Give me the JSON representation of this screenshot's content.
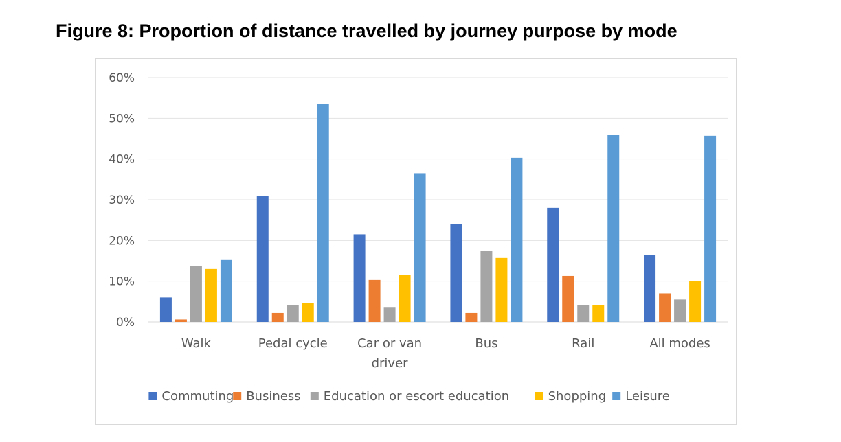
{
  "figure_title": "Figure 8: Proportion of distance travelled by journey purpose by mode",
  "chart_data": {
    "type": "bar",
    "title": "",
    "xlabel": "",
    "ylabel": "",
    "ylim": [
      0,
      60
    ],
    "y_ticks": [
      "0%",
      "10%",
      "20%",
      "30%",
      "40%",
      "50%",
      "60%"
    ],
    "grid": "horizontal",
    "legend_position": "bottom",
    "categories": [
      [
        "Walk"
      ],
      [
        "Pedal cycle"
      ],
      [
        "Car or van",
        "driver"
      ],
      [
        "Bus"
      ],
      [
        "Rail"
      ],
      [
        "All modes"
      ]
    ],
    "series": [
      {
        "name": "Commuting",
        "color": "#4472c4",
        "values": [
          6,
          31,
          21.5,
          24,
          28,
          16.5
        ]
      },
      {
        "name": "Business",
        "color": "#ed7d31",
        "values": [
          0.6,
          2.2,
          10.3,
          2.2,
          11.3,
          7
        ]
      },
      {
        "name": "Education or escort education",
        "color": "#a5a5a5",
        "values": [
          13.8,
          4.1,
          3.5,
          17.5,
          4.1,
          5.5
        ]
      },
      {
        "name": "Shopping",
        "color": "#ffc000",
        "values": [
          13,
          4.7,
          11.6,
          15.7,
          4.1,
          10
        ]
      },
      {
        "name": "Leisure",
        "color": "#5b9bd5",
        "values": [
          15.2,
          53.5,
          36.5,
          40.3,
          46,
          45.7
        ]
      }
    ]
  }
}
